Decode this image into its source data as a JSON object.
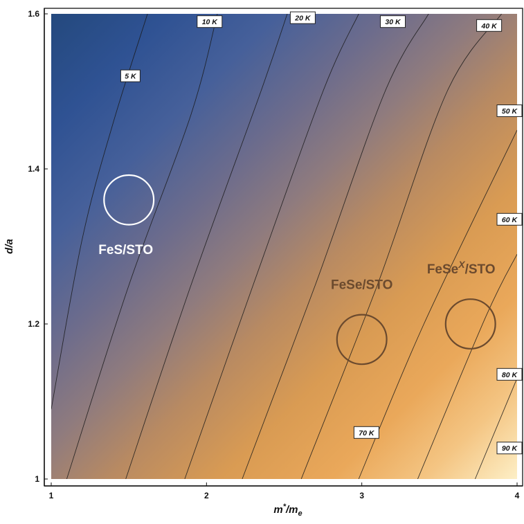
{
  "chart_data": {
    "type": "contour",
    "title": "",
    "xlabel": "m*/m_e",
    "ylabel": "d/a",
    "xlim": [
      1,
      4
    ],
    "ylim": [
      1,
      1.6
    ],
    "x_ticks": [
      {
        "value": 1,
        "label": "1"
      },
      {
        "value": 2,
        "label": "2"
      },
      {
        "value": 3,
        "label": "3"
      },
      {
        "value": 4,
        "label": "4"
      }
    ],
    "y_ticks": [
      {
        "value": 1.0,
        "label": "1"
      },
      {
        "value": 1.2,
        "label": "1.2"
      },
      {
        "value": 1.4,
        "label": "1.4"
      },
      {
        "value": 1.6,
        "label": "1.6"
      }
    ],
    "contour_unit": "K",
    "contour_levels": [
      5,
      10,
      15,
      20,
      25,
      30,
      35,
      40,
      45,
      50,
      55,
      60,
      65,
      70,
      75,
      80,
      85,
      90
    ],
    "labeled_levels": [
      5,
      10,
      20,
      30,
      40,
      50,
      60,
      70,
      80,
      90
    ],
    "contour_curves": [
      {
        "level": 5,
        "points": [
          [
            1.0,
            1.09
          ],
          [
            1.2,
            1.31
          ],
          [
            1.4,
            1.46
          ],
          [
            1.62,
            1.6
          ]
        ]
      },
      {
        "level": 10,
        "points": [
          [
            1.1,
            1.0
          ],
          [
            1.5,
            1.25
          ],
          [
            1.9,
            1.47
          ],
          [
            2.07,
            1.6
          ]
        ]
      },
      {
        "level": 15,
        "points": [
          [
            1.48,
            1.0
          ],
          [
            1.9,
            1.25
          ],
          [
            2.35,
            1.5
          ],
          [
            2.52,
            1.6
          ]
        ]
      },
      {
        "level": 20,
        "points": [
          [
            1.86,
            1.0
          ],
          [
            2.3,
            1.25
          ],
          [
            2.75,
            1.5
          ],
          [
            2.98,
            1.6
          ]
        ]
      },
      {
        "level": 25,
        "points": [
          [
            2.23,
            1.0
          ],
          [
            2.7,
            1.25
          ],
          [
            3.15,
            1.5
          ],
          [
            3.43,
            1.6
          ]
        ]
      },
      {
        "level": 30,
        "points": [
          [
            2.61,
            1.0
          ],
          [
            3.1,
            1.25
          ],
          [
            3.55,
            1.5
          ],
          [
            3.9,
            1.6
          ]
        ]
      },
      {
        "level": 35,
        "points": [
          [
            2.98,
            1.0
          ],
          [
            3.4,
            1.2
          ],
          [
            4.0,
            1.45
          ]
        ]
      },
      {
        "level": 40,
        "points": [
          [
            3.36,
            1.0
          ],
          [
            3.8,
            1.21
          ],
          [
            4.0,
            1.29
          ]
        ]
      },
      {
        "level": 45,
        "points": [
          [
            3.73,
            1.0
          ],
          [
            4.0,
            1.13
          ]
        ]
      }
    ],
    "contour_labels": [
      {
        "text": "5 K",
        "x": 1.51,
        "y": 1.52
      },
      {
        "text": "10 K",
        "x": 2.02,
        "y": 1.59
      },
      {
        "text": "20 K",
        "x": 2.62,
        "y": 1.595
      },
      {
        "text": "30 K",
        "x": 3.2,
        "y": 1.59
      },
      {
        "text": "40 K",
        "x": 3.82,
        "y": 1.585
      },
      {
        "text": "50 K",
        "x": 4.0,
        "y": 1.475
      },
      {
        "text": "60 K",
        "x": 4.0,
        "y": 1.335
      },
      {
        "text": "70 K",
        "x": 3.03,
        "y": 1.06
      },
      {
        "text": "80 K",
        "x": 4.0,
        "y": 1.135
      },
      {
        "text": "90 K",
        "x": 3.97,
        "y": 1.04
      }
    ],
    "annotations": [
      {
        "text": "FeS/STO",
        "circle_x": 1.5,
        "circle_y": 1.36,
        "circle_rx": 0.16,
        "circle_ry": 0.032,
        "label_x": 1.48,
        "label_y": 1.29,
        "color": "#ffffff"
      },
      {
        "text": "FeSe/STO",
        "circle_x": 3.0,
        "circle_y": 1.18,
        "circle_rx": 0.16,
        "circle_ry": 0.032,
        "label_x": 3.0,
        "label_y": 1.245,
        "color": "#6b4a2e"
      },
      {
        "text": "FeSe",
        "superscript": "X",
        "suffix": "/STO",
        "circle_x": 3.7,
        "circle_y": 1.2,
        "circle_rx": 0.16,
        "circle_ry": 0.032,
        "label_x": 3.64,
        "label_y": 1.265,
        "color": "#6b4a2e"
      }
    ],
    "colors": {
      "low": "#24497e",
      "mid": "#7c7486",
      "high_orange": "#e8a450",
      "peak": "#fdefc6",
      "contour_line": "#1a1a1a"
    },
    "grid": false,
    "legend": "none"
  }
}
